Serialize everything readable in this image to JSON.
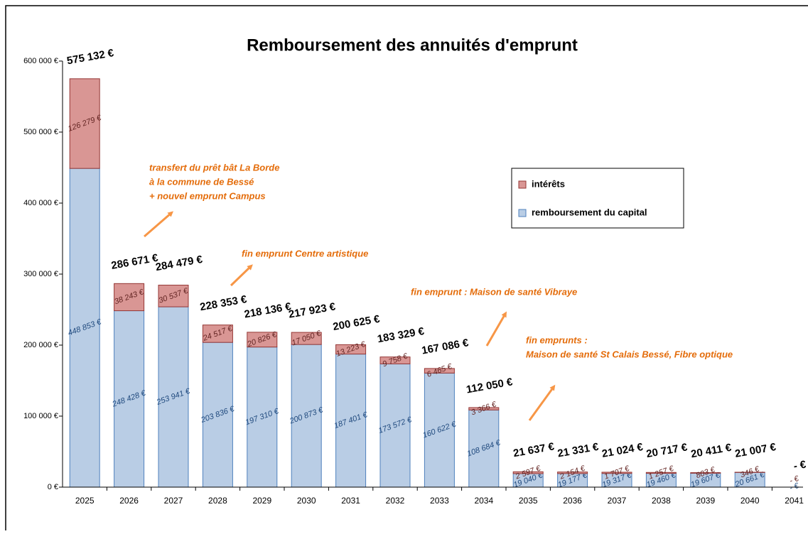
{
  "chart_data": {
    "type": "bar",
    "stacked": true,
    "title": "Remboursement des annuités d'emprunt",
    "categories": [
      "2025",
      "2026",
      "2027",
      "2028",
      "2029",
      "2030",
      "2031",
      "2032",
      "2033",
      "2034",
      "2035",
      "2036",
      "2037",
      "2038",
      "2039",
      "2040",
      "2041"
    ],
    "series": [
      {
        "name": "remboursement du capital",
        "color": "#b9cde5",
        "stroke": "#4f81bd",
        "label_color": "#1f497d",
        "values": [
          448853,
          248428,
          253941,
          203836,
          197310,
          200873,
          187401,
          173572,
          160622,
          108684,
          19040,
          19177,
          19317,
          19460,
          19607,
          20661,
          0
        ],
        "value_labels": [
          "448 853 €",
          "248 428 €",
          "253 941 €",
          "203 836 €",
          "197 310 €",
          "200 873 €",
          "187 401 €",
          "173 572 €",
          "160 622 €",
          "108 684 €",
          "19 040 €",
          "19 177 €",
          "19 317 €",
          "19 460 €",
          "19 607 €",
          "20 661 €",
          "- €"
        ]
      },
      {
        "name": "intérêts",
        "color": "#d99694",
        "stroke": "#953735",
        "label_color": "#632523",
        "values": [
          126279,
          38243,
          30537,
          24517,
          20826,
          17050,
          13223,
          9758,
          6465,
          3366,
          2597,
          2154,
          1707,
          1257,
          803,
          346,
          0
        ],
        "value_labels": [
          "126 279 €",
          "38 243 €",
          "30 537 €",
          "24 517 €",
          "20 826 €",
          "17 050 €",
          "13 223 €",
          "9 758 €",
          "6 465 €",
          "3 366 €",
          "2 597 €",
          "2 154 €",
          "1 707 €",
          "1 257 €",
          "803 €",
          "346 €",
          "- €"
        ]
      }
    ],
    "totals": [
      575132,
      286671,
      284479,
      228353,
      218136,
      217923,
      200625,
      183329,
      167086,
      112050,
      21637,
      21331,
      21024,
      20717,
      20411,
      21007,
      0
    ],
    "total_labels": [
      "575 132 €",
      "286 671 €",
      "284 479 €",
      "228 353 €",
      "218 136 €",
      "217 923 €",
      "200 625 €",
      "183 329 €",
      "167 086 €",
      "112 050 €",
      "21 637 €",
      "21 331 €",
      "21 024 €",
      "20 717 €",
      "20 411 €",
      "21 007 €",
      "- €"
    ],
    "ylim": [
      0,
      600000
    ],
    "yticks": [
      {
        "value": 0,
        "label": "0 €"
      },
      {
        "value": 100000,
        "label": "100 000 €"
      },
      {
        "value": 200000,
        "label": "200 000 €"
      },
      {
        "value": 300000,
        "label": "300 000 €"
      },
      {
        "value": 400000,
        "label": "400 000 €"
      },
      {
        "value": 500000,
        "label": "500 000 €"
      },
      {
        "value": 600000,
        "label": "600 000 €"
      }
    ],
    "grid": false,
    "legend": "right",
    "annotations": [
      {
        "lines": [
          "transfert du prêt bât La Borde",
          "à la commune de Bessé",
          "+ nouvel emprunt Campus"
        ]
      },
      {
        "lines": [
          "fin emprunt Centre artistique"
        ]
      },
      {
        "lines": [
          "fin emprunt : Maison de santé Vibraye"
        ]
      },
      {
        "lines": [
          "fin emprunts :",
          "Maison de santé St Calais Bessé, Fibre optique"
        ]
      }
    ]
  }
}
